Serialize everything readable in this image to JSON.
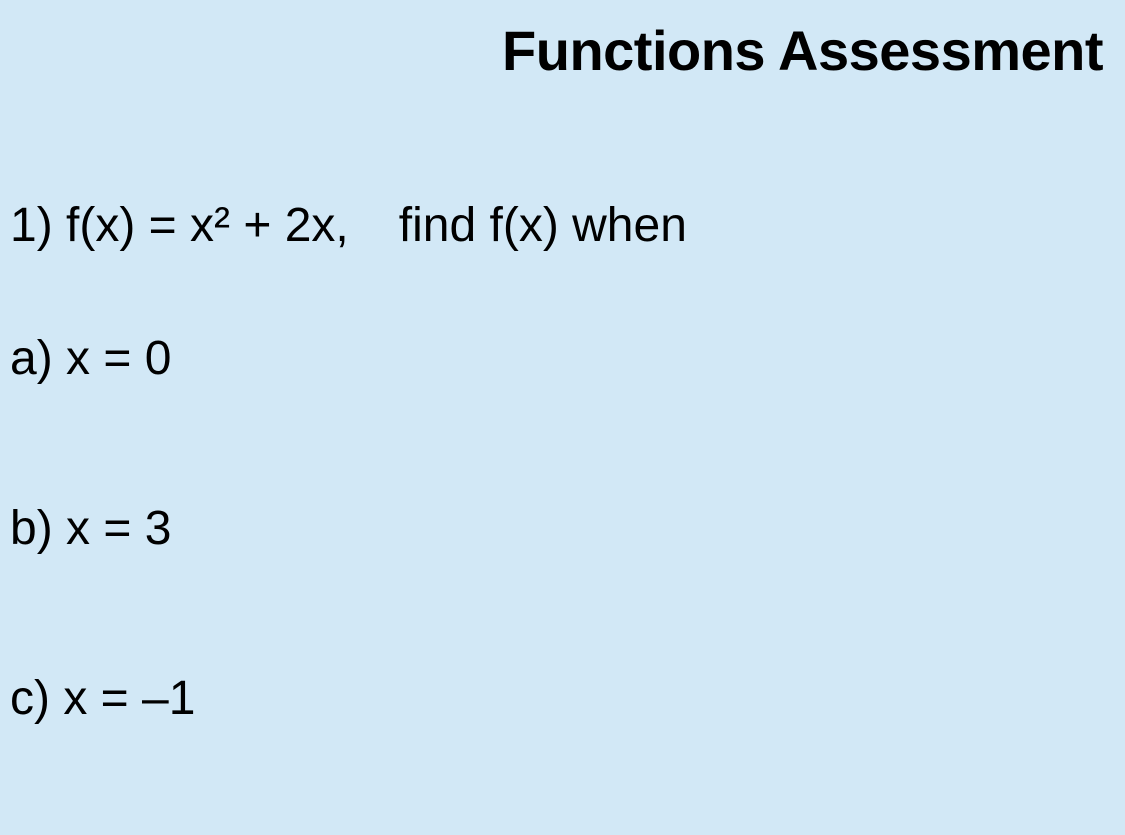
{
  "styling": {
    "background_color": "#d2e8f6",
    "text_color": "#000000",
    "font_family": "Arial, Helvetica, sans-serif",
    "title_fontsize": 56,
    "title_fontweight": "bold",
    "body_fontsize": 48,
    "body_fontweight": "normal"
  },
  "title": "Functions Assessment",
  "question": {
    "number": "1)",
    "function_def": "f(x) = x² + 2x,",
    "instruction": "find f(x) when",
    "parts": [
      {
        "label": "a)",
        "text": "x = 0"
      },
      {
        "label": "b)",
        "text": "x = 3"
      },
      {
        "label": "c)",
        "text": "x = –1"
      }
    ]
  }
}
